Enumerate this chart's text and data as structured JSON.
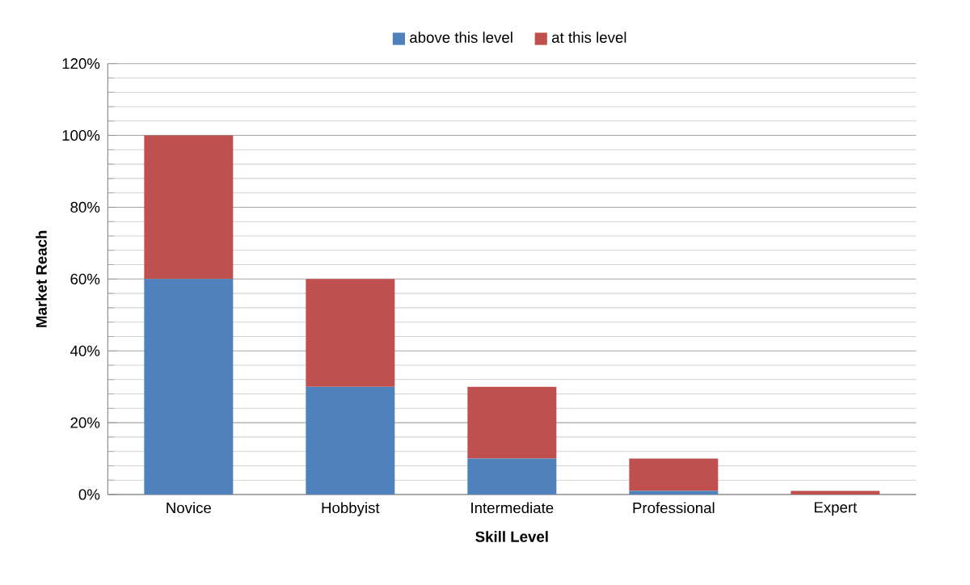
{
  "chart_data": {
    "type": "bar",
    "stacked": true,
    "xlabel": "Skill Level",
    "ylabel": "Market Reach",
    "categories": [
      "Novice",
      "Hobbyist",
      "Intermediate",
      "Professional",
      "Expert"
    ],
    "series": [
      {
        "name": "above this level",
        "color": "#4f81bd",
        "values": [
          60,
          30,
          10,
          1,
          0
        ]
      },
      {
        "name": "at this level",
        "color": "#c0504d",
        "values": [
          40,
          30,
          20,
          9,
          1
        ]
      }
    ],
    "ylim": [
      0,
      120
    ],
    "yticks": [
      {
        "value": 0,
        "label": "0%"
      },
      {
        "value": 20,
        "label": "20%"
      },
      {
        "value": 40,
        "label": "40%"
      },
      {
        "value": 60,
        "label": "60%"
      },
      {
        "value": 80,
        "label": "80%"
      },
      {
        "value": 100,
        "label": "100%"
      },
      {
        "value": 120,
        "label": "120%"
      }
    ],
    "grid": "y",
    "legend": "top"
  }
}
